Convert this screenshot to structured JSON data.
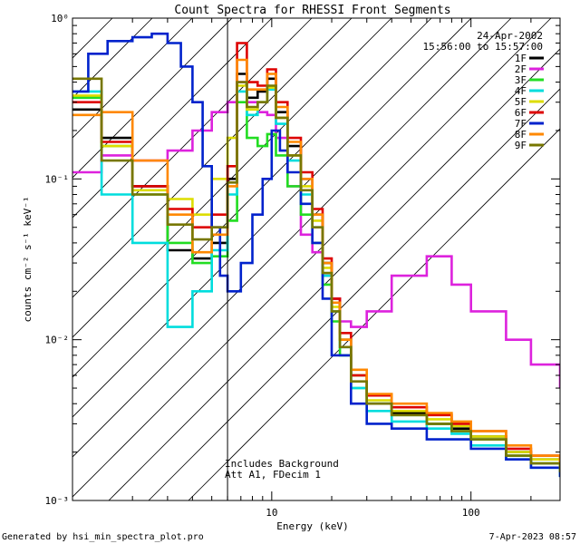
{
  "chart_data": {
    "type": "line",
    "title": "Count Spectra for RHESSI Front Segments",
    "xlabel": "Energy (keV)",
    "ylabel": "counts cm⁻² s⁻¹ keV⁻¹",
    "xscale": "log",
    "yscale": "log",
    "xlim": [
      1,
      280
    ],
    "ylim": [
      0.001,
      1.0
    ],
    "x_ticks": [
      {
        "value": 10,
        "label": "10"
      },
      {
        "value": 100,
        "label": "100"
      }
    ],
    "y_ticks": [
      {
        "value": 1,
        "label": "10⁰"
      },
      {
        "value": 0.1,
        "label": "10⁻¹"
      },
      {
        "value": 0.01,
        "label": "10⁻²"
      },
      {
        "value": 0.001,
        "label": "10⁻³"
      }
    ],
    "attenuator_threshold_kev": 6,
    "annotations": {
      "date": "24-Apr-2002",
      "time_range": "15:56:00 to 15:57:00",
      "notes": [
        "Includes Background",
        "Att A1, FDecim 1"
      ]
    },
    "footer_left": "Generated by hsi_min_spectra_plot.pro",
    "footer_right": "7-Apr-2023 08:57",
    "series": [
      {
        "name": "1F",
        "color": "#000000",
        "x": [
          1.0,
          1.4,
          2.0,
          3.0,
          4.0,
          5.0,
          6.0,
          6.7,
          7.5,
          8.5,
          9.5,
          10.5,
          12,
          14,
          16,
          18,
          20,
          22,
          25,
          30,
          40,
          60,
          80,
          100,
          150,
          200,
          280
        ],
        "y": [
          0.27,
          0.18,
          0.09,
          0.036,
          0.032,
          0.04,
          0.1,
          0.45,
          0.32,
          0.35,
          0.42,
          0.26,
          0.16,
          0.1,
          0.06,
          0.03,
          0.018,
          0.01,
          0.006,
          0.004,
          0.0035,
          0.003,
          0.0028,
          0.0025,
          0.002,
          0.0018,
          0.0016
        ]
      },
      {
        "name": "2F",
        "color": "#dd22dd",
        "x": [
          1.0,
          1.4,
          2.0,
          3.0,
          4.0,
          5.0,
          6.0,
          6.7,
          7.5,
          8.5,
          9.5,
          10.5,
          12,
          14,
          16,
          18,
          20,
          22,
          25,
          30,
          40,
          60,
          80,
          100,
          150,
          200,
          280
        ],
        "y": [
          0.11,
          0.14,
          0.13,
          0.15,
          0.2,
          0.26,
          0.3,
          0.4,
          0.3,
          0.26,
          0.25,
          0.18,
          0.09,
          0.045,
          0.035,
          0.025,
          0.018,
          0.013,
          0.012,
          0.015,
          0.025,
          0.033,
          0.022,
          0.015,
          0.01,
          0.007,
          0.005
        ]
      },
      {
        "name": "3F",
        "color": "#22dd22",
        "x": [
          1.0,
          1.4,
          2.0,
          3.0,
          4.0,
          5.0,
          6.0,
          6.7,
          7.5,
          8.5,
          9.5,
          10.5,
          12,
          14,
          16,
          18,
          20,
          22,
          25,
          30,
          40,
          60,
          80,
          100,
          150,
          200,
          280
        ],
        "y": [
          0.32,
          0.16,
          0.08,
          0.04,
          0.03,
          0.033,
          0.055,
          0.3,
          0.18,
          0.16,
          0.19,
          0.14,
          0.09,
          0.06,
          0.04,
          0.022,
          0.013,
          0.008,
          0.005,
          0.004,
          0.0034,
          0.003,
          0.0027,
          0.0024,
          0.0019,
          0.0017,
          0.0015
        ]
      },
      {
        "name": "4F",
        "color": "#00dddd",
        "x": [
          1.0,
          1.4,
          2.0,
          3.0,
          4.0,
          5.0,
          6.0,
          6.7,
          7.5,
          8.5,
          9.5,
          10.5,
          12,
          14,
          16,
          18,
          20,
          22,
          25,
          30,
          40,
          60,
          80,
          100,
          150,
          200,
          280
        ],
        "y": [
          0.35,
          0.08,
          0.04,
          0.012,
          0.02,
          0.036,
          0.08,
          0.35,
          0.25,
          0.3,
          0.36,
          0.22,
          0.13,
          0.08,
          0.05,
          0.025,
          0.015,
          0.009,
          0.005,
          0.0036,
          0.0031,
          0.0028,
          0.0026,
          0.0022,
          0.0018,
          0.0016,
          0.0014
        ]
      },
      {
        "name": "5F",
        "color": "#dddd00",
        "x": [
          1.0,
          1.4,
          2.0,
          3.0,
          4.0,
          5.0,
          6.0,
          6.7,
          7.5,
          8.5,
          9.5,
          10.5,
          12,
          14,
          16,
          18,
          20,
          22,
          25,
          30,
          40,
          60,
          80,
          100,
          150,
          200,
          280
        ],
        "y": [
          0.33,
          0.16,
          0.085,
          0.075,
          0.06,
          0.1,
          0.18,
          0.38,
          0.27,
          0.3,
          0.37,
          0.24,
          0.14,
          0.09,
          0.055,
          0.028,
          0.016,
          0.01,
          0.006,
          0.0042,
          0.0036,
          0.0032,
          0.0029,
          0.0025,
          0.002,
          0.0018,
          0.0016
        ]
      },
      {
        "name": "6F",
        "color": "#dd0000",
        "x": [
          1.0,
          1.4,
          2.0,
          3.0,
          4.0,
          5.0,
          6.0,
          6.7,
          7.5,
          8.5,
          9.5,
          10.5,
          12,
          14,
          16,
          18,
          20,
          22,
          25,
          30,
          40,
          60,
          80,
          100,
          150,
          200,
          280
        ],
        "y": [
          0.3,
          0.17,
          0.09,
          0.065,
          0.05,
          0.06,
          0.12,
          0.7,
          0.4,
          0.38,
          0.48,
          0.3,
          0.18,
          0.11,
          0.065,
          0.032,
          0.018,
          0.011,
          0.006,
          0.0045,
          0.0038,
          0.0034,
          0.003,
          0.0027,
          0.0021,
          0.0019,
          0.0017
        ]
      },
      {
        "name": "7F",
        "color": "#0022cc",
        "x": [
          1.0,
          1.2,
          1.5,
          2.0,
          2.5,
          3.0,
          3.5,
          4.0,
          4.5,
          5.0,
          5.5,
          6.0,
          7.0,
          8.0,
          9.0,
          10.0,
          11,
          12,
          14,
          16,
          18,
          20,
          25,
          30,
          40,
          60,
          100,
          150,
          200,
          280
        ],
        "y": [
          0.35,
          0.6,
          0.72,
          0.76,
          0.8,
          0.7,
          0.5,
          0.3,
          0.12,
          0.05,
          0.025,
          0.02,
          0.03,
          0.06,
          0.1,
          0.2,
          0.15,
          0.11,
          0.07,
          0.04,
          0.018,
          0.008,
          0.004,
          0.003,
          0.0028,
          0.0024,
          0.0021,
          0.0018,
          0.0016,
          0.0014
        ]
      },
      {
        "name": "8F",
        "color": "#ff8800",
        "x": [
          1.0,
          1.4,
          2.0,
          3.0,
          4.0,
          5.0,
          6.0,
          6.7,
          7.5,
          8.5,
          9.5,
          10.5,
          12,
          14,
          16,
          18,
          20,
          22,
          25,
          30,
          40,
          60,
          80,
          100,
          150,
          200,
          280
        ],
        "y": [
          0.25,
          0.26,
          0.13,
          0.06,
          0.035,
          0.045,
          0.09,
          0.55,
          0.36,
          0.36,
          0.45,
          0.28,
          0.17,
          0.1,
          0.06,
          0.03,
          0.017,
          0.01,
          0.0065,
          0.0046,
          0.004,
          0.0035,
          0.0031,
          0.0027,
          0.0022,
          0.0019,
          0.0017
        ]
      },
      {
        "name": "9F",
        "color": "#777700",
        "x": [
          1.0,
          1.4,
          2.0,
          3.0,
          4.0,
          5.0,
          6.0,
          6.7,
          7.5,
          8.5,
          9.5,
          10.5,
          12,
          14,
          16,
          18,
          20,
          22,
          25,
          30,
          40,
          60,
          80,
          100,
          150,
          200,
          280
        ],
        "y": [
          0.42,
          0.13,
          0.08,
          0.052,
          0.042,
          0.05,
          0.095,
          0.4,
          0.28,
          0.3,
          0.38,
          0.24,
          0.14,
          0.085,
          0.05,
          0.026,
          0.015,
          0.009,
          0.0055,
          0.004,
          0.0034,
          0.003,
          0.0027,
          0.0024,
          0.0019,
          0.0017,
          0.0015
        ]
      }
    ]
  }
}
